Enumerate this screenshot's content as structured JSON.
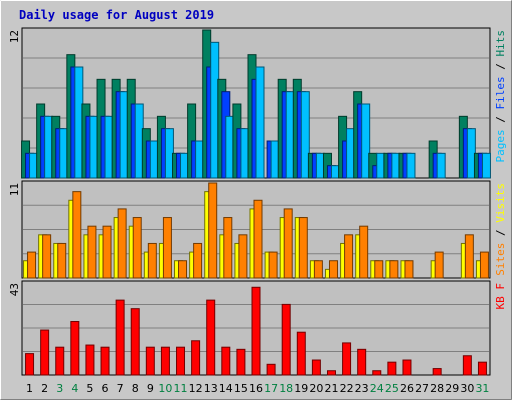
{
  "chart_data": {
    "title": "Daily usage for August 2019",
    "type": "bar",
    "categories": [
      "1",
      "2",
      "3",
      "4",
      "5",
      "6",
      "7",
      "8",
      "9",
      "10",
      "11",
      "12",
      "13",
      "14",
      "15",
      "16",
      "17",
      "18",
      "19",
      "20",
      "21",
      "22",
      "23",
      "24",
      "25",
      "26",
      "27",
      "28",
      "29",
      "30",
      "31"
    ],
    "weekend_days": [
      "3",
      "4",
      "10",
      "11",
      "17",
      "18",
      "24",
      "25",
      "31"
    ],
    "panels": [
      {
        "ymax_label": "12",
        "ymax": 12,
        "legend": [
          {
            "text": "Pages",
            "color": "#00c0ff"
          },
          {
            "text": " / ",
            "color": "#000000"
          },
          {
            "text": "Files",
            "color": "#0040ff"
          },
          {
            "text": " / ",
            "color": "#000000"
          },
          {
            "text": "Hits",
            "color": "#008060"
          }
        ],
        "series": [
          {
            "name": "Hits",
            "color": "#008060",
            "values": [
              3,
              6,
              5,
              10,
              6,
              8,
              8,
              8,
              4,
              5,
              2,
              6,
              12,
              8,
              6,
              10,
              0,
              8,
              8,
              2,
              2,
              5,
              7,
              2,
              2,
              2,
              0,
              3,
              0,
              5,
              2
            ]
          },
          {
            "name": "Files",
            "color": "#0040ff",
            "values": [
              2,
              5,
              4,
              9,
              5,
              5,
              7,
              6,
              3,
              4,
              2,
              3,
              9,
              7,
              4,
              8,
              3,
              7,
              7,
              2,
              1,
              3,
              6,
              1,
              2,
              2,
              0,
              2,
              0,
              4,
              2
            ]
          },
          {
            "name": "Pages",
            "color": "#00c0ff",
            "values": [
              2,
              5,
              4,
              9,
              5,
              5,
              7,
              6,
              3,
              4,
              2,
              3,
              11,
              5,
              4,
              9,
              3,
              7,
              7,
              2,
              1,
              4,
              6,
              2,
              2,
              2,
              0,
              2,
              0,
              4,
              2
            ]
          }
        ]
      },
      {
        "ymax_label": "11",
        "ymax": 11,
        "legend": [
          {
            "text": "Sites",
            "color": "#ff8000"
          },
          {
            "text": " / ",
            "color": "#000000"
          },
          {
            "text": "Visits",
            "color": "#ffff00"
          }
        ],
        "series": [
          {
            "name": "Visits",
            "color": "#ffff00",
            "values": [
              2,
              5,
              4,
              9,
              5,
              5,
              7,
              6,
              3,
              4,
              2,
              3,
              10,
              5,
              4,
              8,
              3,
              7,
              7,
              2,
              1,
              4,
              5,
              2,
              2,
              2,
              0,
              2,
              0,
              4,
              2
            ]
          },
          {
            "name": "Sites",
            "color": "#ff8000",
            "values": [
              3,
              5,
              4,
              10,
              6,
              6,
              8,
              7,
              4,
              7,
              2,
              4,
              11,
              7,
              5,
              9,
              3,
              8,
              7,
              2,
              2,
              5,
              6,
              2,
              2,
              2,
              0,
              3,
              0,
              5,
              3
            ]
          }
        ]
      },
      {
        "ymax_label": "43",
        "ymax": 43,
        "legend": [
          {
            "text": "KB F",
            "color": "#ff0000"
          }
        ],
        "series": [
          {
            "name": "KB F",
            "color": "#ff0000",
            "values": [
              10,
              21,
              13,
              25,
              14,
              13,
              35,
              31,
              13,
              13,
              13,
              16,
              35,
              13,
              12,
              41,
              5,
              33,
              20,
              7,
              2,
              15,
              12,
              2,
              6,
              7,
              0,
              3,
              0,
              9,
              6
            ]
          }
        ]
      }
    ]
  }
}
